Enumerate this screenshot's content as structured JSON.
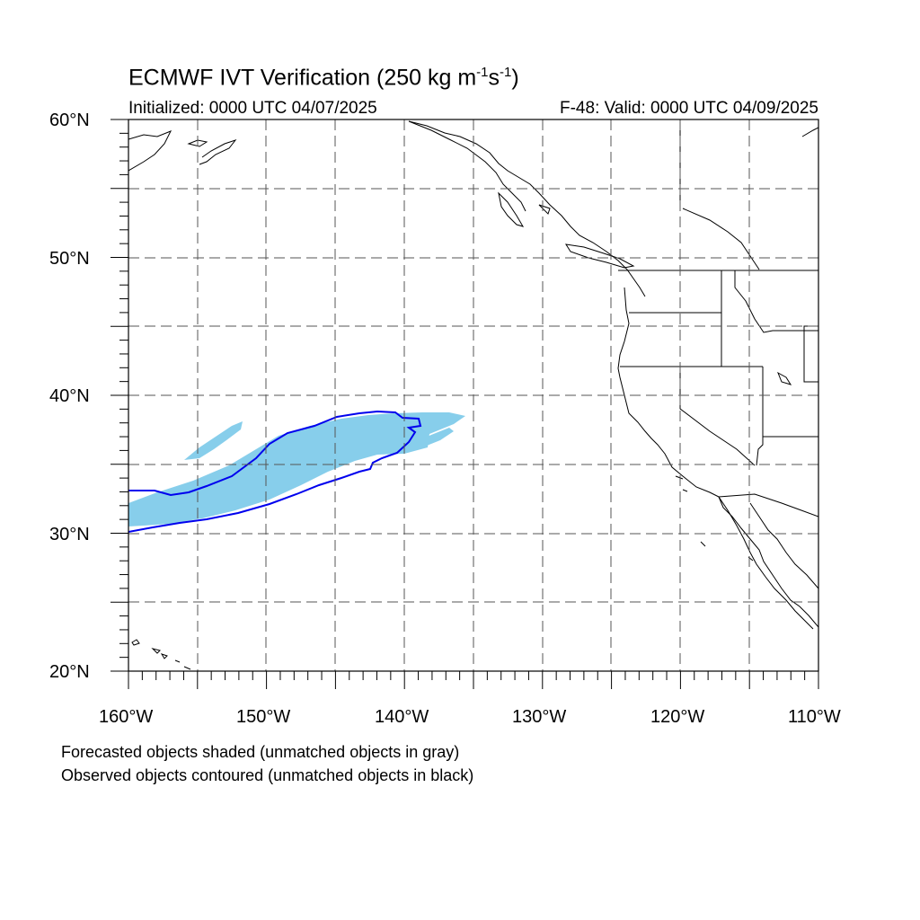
{
  "header": {
    "title_main": "ECMWF IVT Verification (250 kg m",
    "title_exp1": "-1",
    "title_mid": "s",
    "title_exp2": "-1",
    "title_end": ")",
    "initialized": "Initialized: 0000 UTC 04/07/2025",
    "valid": "F-48: Valid: 0000 UTC 04/09/2025"
  },
  "axes": {
    "lat_labels": [
      "60°N",
      "50°N",
      "40°N",
      "30°N",
      "20°N"
    ],
    "lon_labels": [
      "160°W",
      "150°W",
      "140°W",
      "130°W",
      "120°W",
      "110°W"
    ],
    "lat_range": [
      20,
      60
    ],
    "lon_range": [
      -160,
      -110
    ],
    "grid": "dashed, every 5°"
  },
  "legend": {
    "line1": "Forecasted objects shaded (unmatched objects in gray)",
    "line2": "Observed objects contoured (unmatched objects in black)"
  },
  "colors": {
    "forecast_fill": "#87ceeb",
    "observed_contour": "#0000ee",
    "coastline": "#000000",
    "grid": "#555555"
  }
}
